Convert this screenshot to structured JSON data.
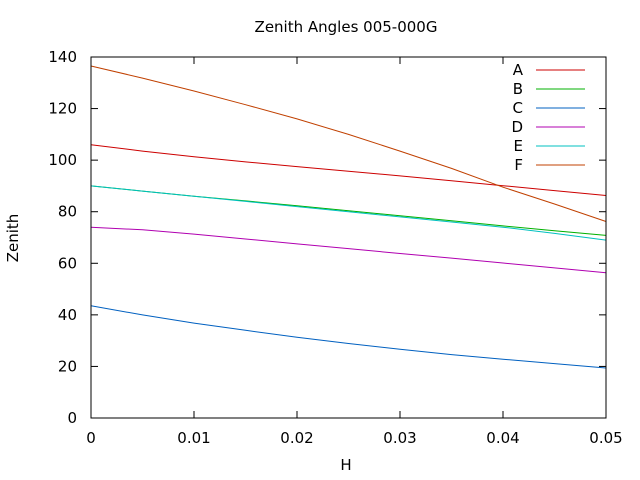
{
  "chart_data": {
    "type": "line",
    "title": "Zenith Angles 005-000G",
    "xlabel": "H",
    "ylabel": "Zenith",
    "xlim": [
      0,
      0.05
    ],
    "ylim": [
      0,
      140
    ],
    "x_ticks": [
      "0",
      "0.01",
      "0.02",
      "0.03",
      "0.04",
      "0.05"
    ],
    "y_ticks": [
      "0",
      "20",
      "40",
      "60",
      "80",
      "100",
      "120",
      "140"
    ],
    "grid": false,
    "legend_position": "top-right",
    "x": [
      0,
      0.005,
      0.01,
      0.015,
      0.02,
      0.025,
      0.03,
      0.035,
      0.04,
      0.045,
      0.05
    ],
    "series": [
      {
        "name": "A",
        "color": "#cc0000",
        "values": [
          106,
          103.5,
          101.3,
          99.3,
          97.5,
          95.7,
          93.9,
          92.0,
          90.1,
          88.2,
          86.3
        ]
      },
      {
        "name": "B",
        "color": "#00b000",
        "values": [
          90,
          88.0,
          86.0,
          84.2,
          82.3,
          80.4,
          78.4,
          76.5,
          74.5,
          72.6,
          70.8
        ]
      },
      {
        "name": "C",
        "color": "#0060c0",
        "values": [
          43.5,
          40.0,
          36.8,
          34.0,
          31.3,
          28.9,
          26.7,
          24.6,
          22.8,
          21.1,
          19.4
        ]
      },
      {
        "name": "D",
        "color": "#b000b0",
        "values": [
          74,
          73.0,
          71.3,
          69.4,
          67.5,
          65.7,
          63.8,
          62.0,
          60.1,
          58.2,
          56.3
        ]
      },
      {
        "name": "E",
        "color": "#00c0c0",
        "values": [
          90,
          88.0,
          86.0,
          84.0,
          82.0,
          80.0,
          78.0,
          76.0,
          74.0,
          71.6,
          69.0
        ]
      },
      {
        "name": "F",
        "color": "#c04000",
        "values": [
          136.5,
          131.8,
          126.8,
          121.5,
          116.0,
          110.0,
          103.5,
          96.8,
          89.5,
          83.0,
          76.2
        ]
      }
    ]
  }
}
